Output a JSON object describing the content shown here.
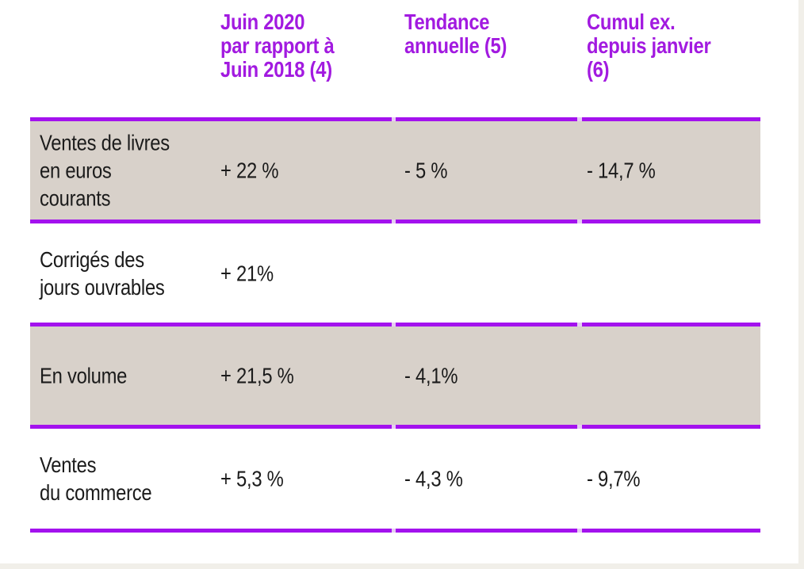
{
  "colors": {
    "accent_rule": "#a312ee",
    "rule_gap": "#e6cdf2",
    "header_text": "#a21ae0",
    "shaded_row_bg": "#d8d1ca",
    "body_text": "#1b1b1b",
    "page_edge": "#f1efe9"
  },
  "table": {
    "columns": [
      "",
      "Juin 2020\npar rapport à\nJuin 2018 (4)",
      "Tendance\nannuelle (5)",
      "Cumul ex.\ndepuis janvier\n(6)"
    ],
    "rows": [
      {
        "label": "Ventes de livres\nen euros\ncourants",
        "cells": [
          "+ 22 %",
          "- 5 %",
          "- 14,7 %"
        ],
        "shaded": true
      },
      {
        "label": "Corrigés des\njours ouvrables",
        "cells": [
          "+ 21%",
          "",
          ""
        ],
        "shaded": false
      },
      {
        "label": "En volume",
        "cells": [
          "+ 21,5 %",
          "- 4,1%",
          ""
        ],
        "shaded": true
      },
      {
        "label": "Ventes\ndu commerce",
        "cells": [
          "+ 5,3 %",
          "- 4,3 %",
          "- 9,7%"
        ],
        "shaded": false
      }
    ]
  },
  "chart_data": {
    "type": "table",
    "columns": [
      "",
      "Juin 2020 par rapport à Juin 2018 (4)",
      "Tendance annuelle (5)",
      "Cumul ex. depuis janvier (6)"
    ],
    "rows": [
      [
        "Ventes de livres en euros courants",
        "+ 22 %",
        "- 5 %",
        "- 14,7 %"
      ],
      [
        "Corrigés des jours ouvrables",
        "+ 21%",
        "",
        ""
      ],
      [
        "En volume",
        "+ 21,5 %",
        "- 4,1%",
        ""
      ],
      [
        "Ventes du commerce",
        "+ 5,3 %",
        "- 4,3 %",
        "- 9,7%"
      ]
    ]
  }
}
